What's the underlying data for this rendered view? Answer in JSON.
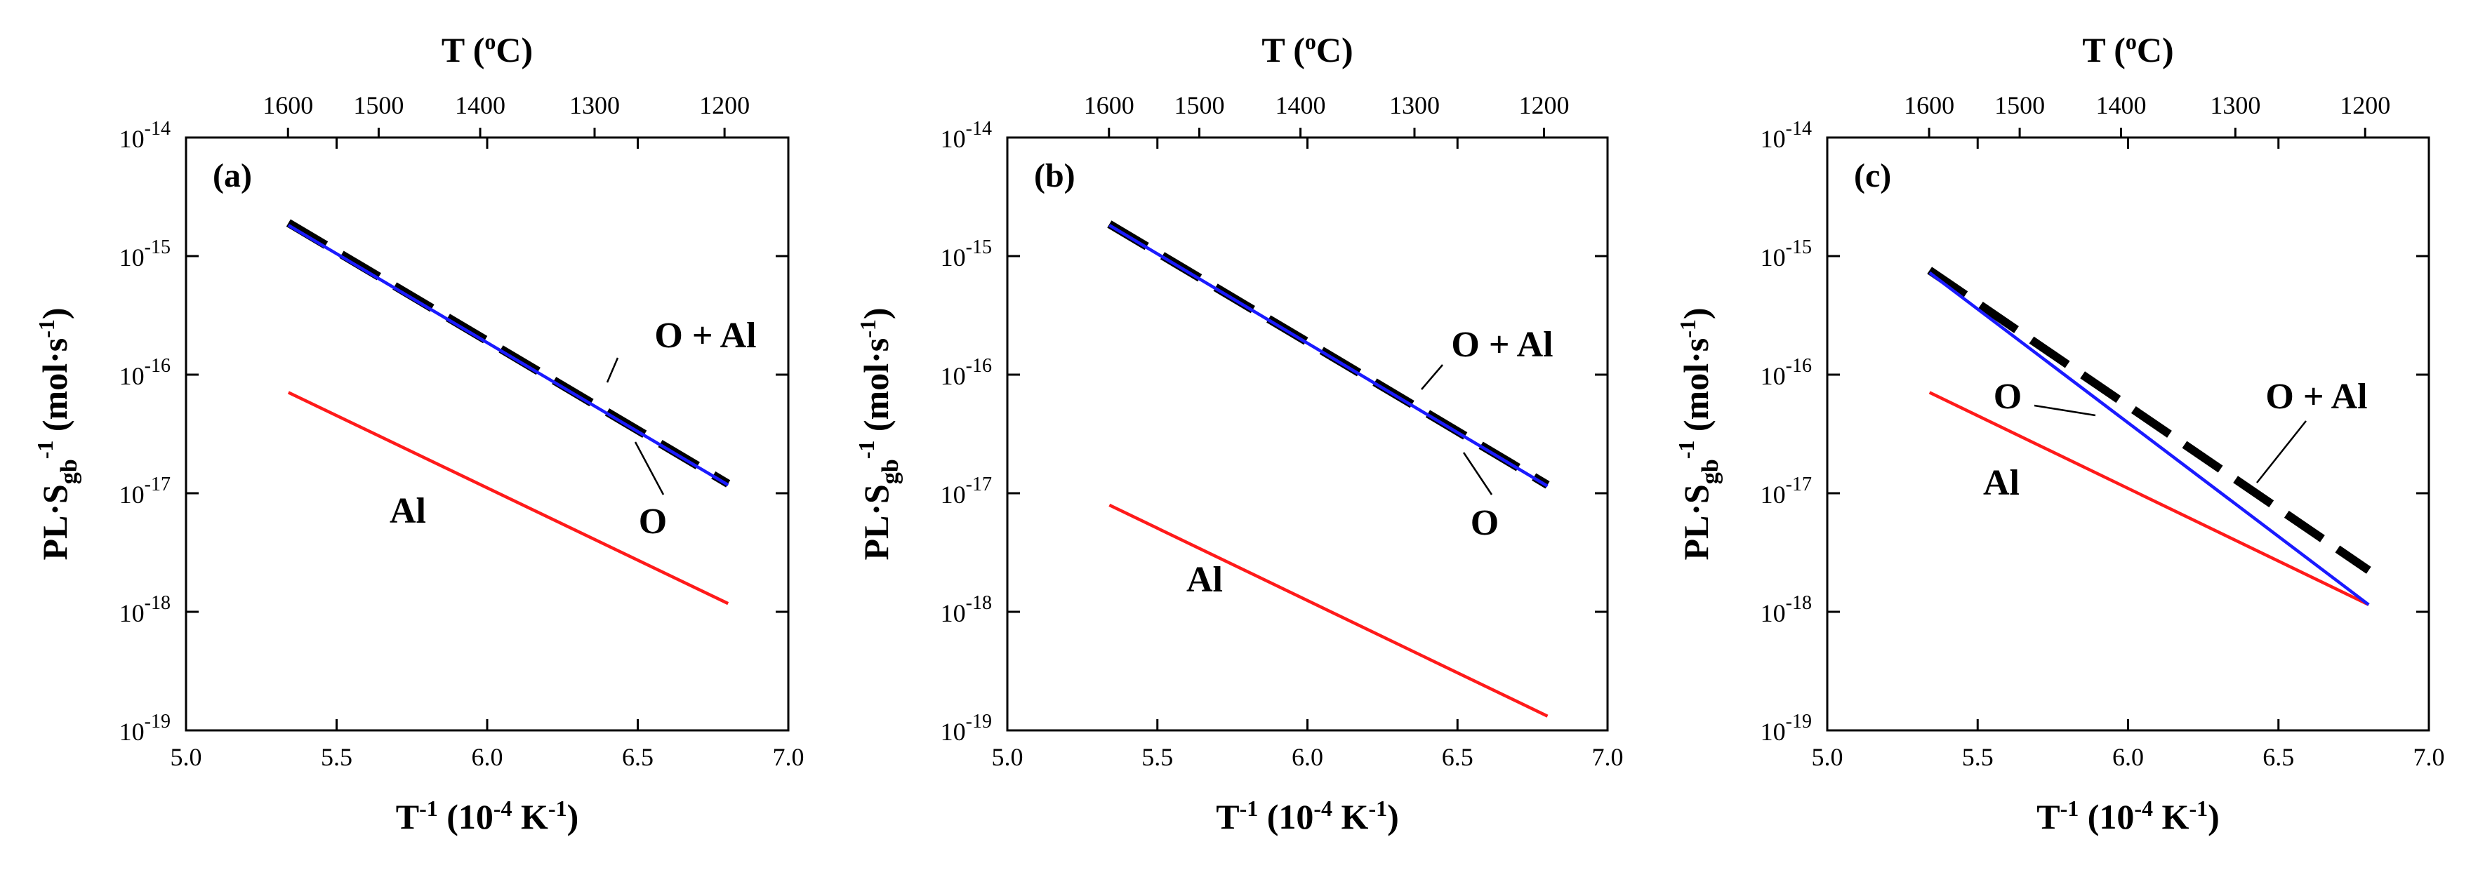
{
  "chart_data": [
    {
      "type": "line",
      "panel_label": "(a)",
      "xlabel": "T-1 (10-4 K-1)",
      "ylabel": "PL·Sgb-1 (mol·s-1)",
      "top_xlabel": "T (oC)",
      "xlim": [
        5.0,
        7.0
      ],
      "ylim_log10": [
        -19,
        -14
      ],
      "x_ticks": [
        "5.0",
        "5.5",
        "6.0",
        "6.5",
        "7.0"
      ],
      "y_tick_exponents": [
        "-19",
        "-18",
        "-17",
        "-16",
        "-15",
        "-14"
      ],
      "top_ticks_celsius": [
        "1600",
        "1500",
        "1400",
        "1300",
        "1200"
      ],
      "series": [
        {
          "name": "O + Al",
          "color": "#000000",
          "style": "dashed",
          "x": [
            5.34,
            6.8
          ],
          "log10_y": [
            -14.72,
            -16.92
          ]
        },
        {
          "name": "O",
          "color": "#1a1aff",
          "style": "solid",
          "x": [
            5.34,
            6.8
          ],
          "log10_y": [
            -14.74,
            -16.93
          ]
        },
        {
          "name": "Al",
          "color": "#ff1a1a",
          "style": "solid",
          "x": [
            5.34,
            6.8
          ],
          "log10_y": [
            -16.15,
            -17.93
          ]
        }
      ]
    },
    {
      "type": "line",
      "panel_label": "(b)",
      "xlabel": "T-1 (10-4 K-1)",
      "ylabel": "PL·Sgb-1 (mol·s-1)",
      "top_xlabel": "T (oC)",
      "xlim": [
        5.0,
        7.0
      ],
      "ylim_log10": [
        -19,
        -14
      ],
      "x_ticks": [
        "5.0",
        "5.5",
        "6.0",
        "6.5",
        "7.0"
      ],
      "y_tick_exponents": [
        "-19",
        "-18",
        "-17",
        "-16",
        "-15",
        "-14"
      ],
      "top_ticks_celsius": [
        "1600",
        "1500",
        "1400",
        "1300",
        "1200"
      ],
      "series": [
        {
          "name": "O + Al",
          "color": "#000000",
          "style": "dashed",
          "x": [
            5.34,
            6.8
          ],
          "log10_y": [
            -14.73,
            -16.93
          ]
        },
        {
          "name": "O",
          "color": "#1a1aff",
          "style": "solid",
          "x": [
            5.34,
            6.8
          ],
          "log10_y": [
            -14.74,
            -16.94
          ]
        },
        {
          "name": "Al",
          "color": "#ff1a1a",
          "style": "solid",
          "x": [
            5.34,
            6.8
          ],
          "log10_y": [
            -17.1,
            -18.88
          ]
        }
      ]
    },
    {
      "type": "line",
      "panel_label": "(c)",
      "xlabel": "T-1 (10-4 K-1)",
      "ylabel": "PL·Sgb-1 (mol·s-1)",
      "top_xlabel": "T (oC)",
      "xlim": [
        5.0,
        7.0
      ],
      "ylim_log10": [
        -19,
        -14
      ],
      "x_ticks": [
        "5.0",
        "5.5",
        "6.0",
        "6.5",
        "7.0"
      ],
      "y_tick_exponents": [
        "-19",
        "-18",
        "-17",
        "-16",
        "-15",
        "-14"
      ],
      "top_ticks_celsius": [
        "1600",
        "1500",
        "1400",
        "1300",
        "1200"
      ],
      "series": [
        {
          "name": "O + Al",
          "color": "#000000",
          "style": "dashed",
          "x": [
            5.34,
            6.8
          ],
          "log10_y": [
            -15.12,
            -17.65
          ]
        },
        {
          "name": "O",
          "color": "#1a1aff",
          "style": "solid",
          "x": [
            5.34,
            6.8
          ],
          "log10_y": [
            -15.14,
            -17.94
          ]
        },
        {
          "name": "Al",
          "color": "#ff1a1a",
          "style": "solid",
          "x": [
            5.34,
            6.8
          ],
          "log10_y": [
            -16.15,
            -17.94
          ]
        }
      ]
    }
  ],
  "labels": {
    "T": "T",
    "celsius": "(oC)",
    "xbase": "T",
    "xsup": "-1",
    "xunit_open": "(10",
    "xunit_exp": "-4",
    "xunit_K": " K",
    "xunit_Kexp": "-1",
    "xunit_close": ")",
    "ylab_PL": "PL·S",
    "ylab_gb": "gb",
    "ylab_sup": "-1",
    "ylab_unit": " (mol·s",
    "ylab_unit_sup": "-1",
    "ylab_close": ")",
    "ten": "10"
  }
}
